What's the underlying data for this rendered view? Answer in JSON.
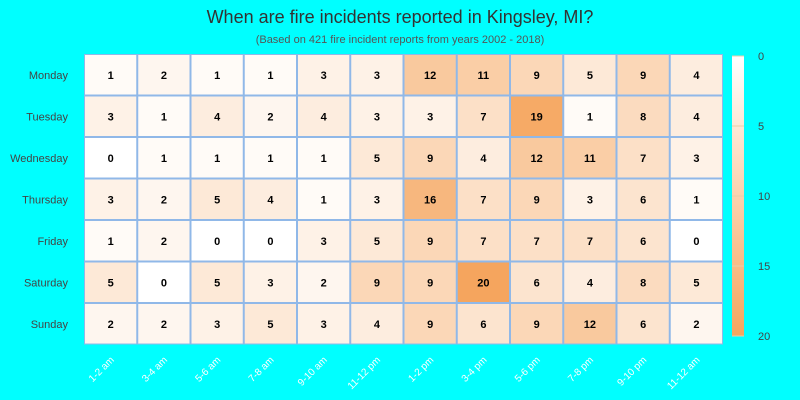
{
  "chart_data": {
    "type": "heatmap",
    "title": "When are fire incidents reported in Kingsley, MI?",
    "subtitle": "(Based on 421 fire incident reports from years 2002 - 2018)",
    "columns": [
      "1-2 am",
      "3-4 am",
      "5-6 am",
      "7-8 am",
      "9-10 am",
      "11-12 pm",
      "1-2 pm",
      "3-4 pm",
      "5-6 pm",
      "7-8 pm",
      "9-10 pm",
      "11-12 am"
    ],
    "rows": [
      "Monday",
      "Tuesday",
      "Wednesday",
      "Thursday",
      "Friday",
      "Saturday",
      "Sunday"
    ],
    "values": [
      [
        1,
        2,
        1,
        1,
        3,
        3,
        12,
        11,
        9,
        5,
        9,
        4
      ],
      [
        3,
        1,
        4,
        2,
        4,
        3,
        3,
        7,
        19,
        1,
        8,
        4
      ],
      [
        0,
        1,
        1,
        1,
        1,
        5,
        9,
        4,
        12,
        11,
        7,
        3
      ],
      [
        3,
        2,
        5,
        4,
        1,
        3,
        16,
        7,
        9,
        3,
        6,
        1
      ],
      [
        1,
        2,
        0,
        0,
        3,
        5,
        9,
        7,
        7,
        7,
        6,
        0
      ],
      [
        5,
        0,
        5,
        3,
        2,
        9,
        9,
        20,
        6,
        4,
        8,
        5
      ],
      [
        2,
        2,
        3,
        5,
        3,
        4,
        9,
        6,
        9,
        12,
        6,
        2
      ]
    ],
    "color_scale": {
      "min": 0,
      "max": 20,
      "low_color": "#ffffff",
      "high_color": "#f5a55e",
      "ticks": [
        0,
        5,
        10,
        15,
        20
      ]
    },
    "colors": {
      "background": "#00ffff",
      "grid_line": "#90b8e8",
      "cell_text": "#000000",
      "label_text": "#444444"
    }
  }
}
